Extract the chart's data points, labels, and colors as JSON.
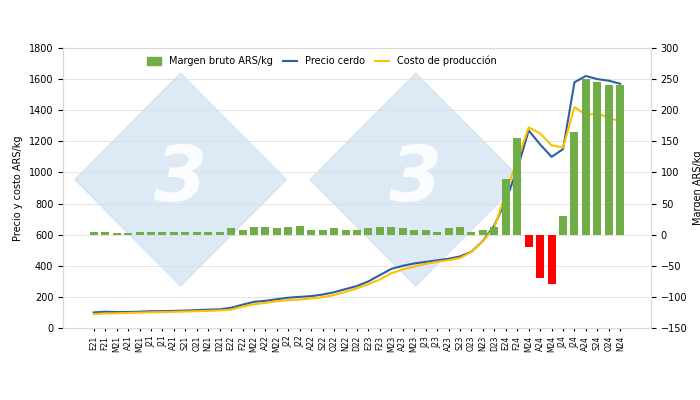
{
  "labels": [
    "E21",
    "F21",
    "M21",
    "A21",
    "M21",
    "J21",
    "J21",
    "A21",
    "S21",
    "O21",
    "N21",
    "D21",
    "E22",
    "F22",
    "M22",
    "A22",
    "M22",
    "J22",
    "J22",
    "A22",
    "S22",
    "O22",
    "N22",
    "D22",
    "E23",
    "F23",
    "M23",
    "A23",
    "M23",
    "J23",
    "J23",
    "A23",
    "S23",
    "O23",
    "N23",
    "D23",
    "E24",
    "F24",
    "M24",
    "A24",
    "M24",
    "J24",
    "J24",
    "A24",
    "S24",
    "O24",
    "N24"
  ],
  "precio_cerdo": [
    100,
    105,
    102,
    103,
    105,
    108,
    108,
    110,
    112,
    115,
    118,
    120,
    130,
    150,
    168,
    175,
    185,
    195,
    200,
    205,
    215,
    230,
    250,
    270,
    300,
    340,
    380,
    400,
    415,
    425,
    435,
    445,
    460,
    490,
    560,
    660,
    820,
    1020,
    1270,
    1180,
    1100,
    1150,
    1580,
    1620,
    1600,
    1590,
    1570
  ],
  "costo_produccion": [
    90,
    93,
    95,
    97,
    99,
    101,
    102,
    104,
    106,
    108,
    110,
    113,
    118,
    138,
    152,
    162,
    172,
    179,
    183,
    190,
    198,
    212,
    232,
    255,
    282,
    312,
    352,
    376,
    395,
    412,
    425,
    436,
    450,
    488,
    558,
    645,
    870,
    1080,
    1290,
    1250,
    1175,
    1160,
    1420,
    1370,
    1380,
    1350,
    1330
  ],
  "margen_bruto": [
    5,
    5,
    3,
    3,
    4,
    4,
    4,
    4,
    4,
    5,
    5,
    5,
    10,
    8,
    12,
    12,
    10,
    12,
    14,
    8,
    8,
    10,
    8,
    8,
    10,
    12,
    12,
    10,
    8,
    8,
    5,
    10,
    12,
    5,
    8,
    12,
    90,
    155,
    -20,
    -70,
    -80,
    30,
    165,
    250,
    245,
    240,
    240
  ],
  "bar_colors_positive": "#70ad47",
  "bar_colors_negative": "#ff0000",
  "line_precio_color": "#2e5ea3",
  "line_costo_color": "#ffc000",
  "background_color": "#ffffff",
  "grid_color": "#d9d9d9",
  "ylabel_left": "Precio y costo ARS/kg",
  "ylabel_right": "Margen ARS/kg",
  "ylim_left": [
    0,
    1800
  ],
  "ylim_right": [
    -150,
    300
  ],
  "yticks_left": [
    0,
    200,
    400,
    600,
    800,
    1000,
    1200,
    1400,
    1600,
    1800
  ],
  "yticks_right": [
    -150,
    -100,
    -50,
    0,
    50,
    100,
    150,
    200,
    250,
    300
  ],
  "legend_labels": [
    "Margen bruto ARS/kg",
    "Precio cerdo",
    "Costo de producción"
  ],
  "watermark_color": "#cfe0f0",
  "watermark_alpha": 0.7
}
